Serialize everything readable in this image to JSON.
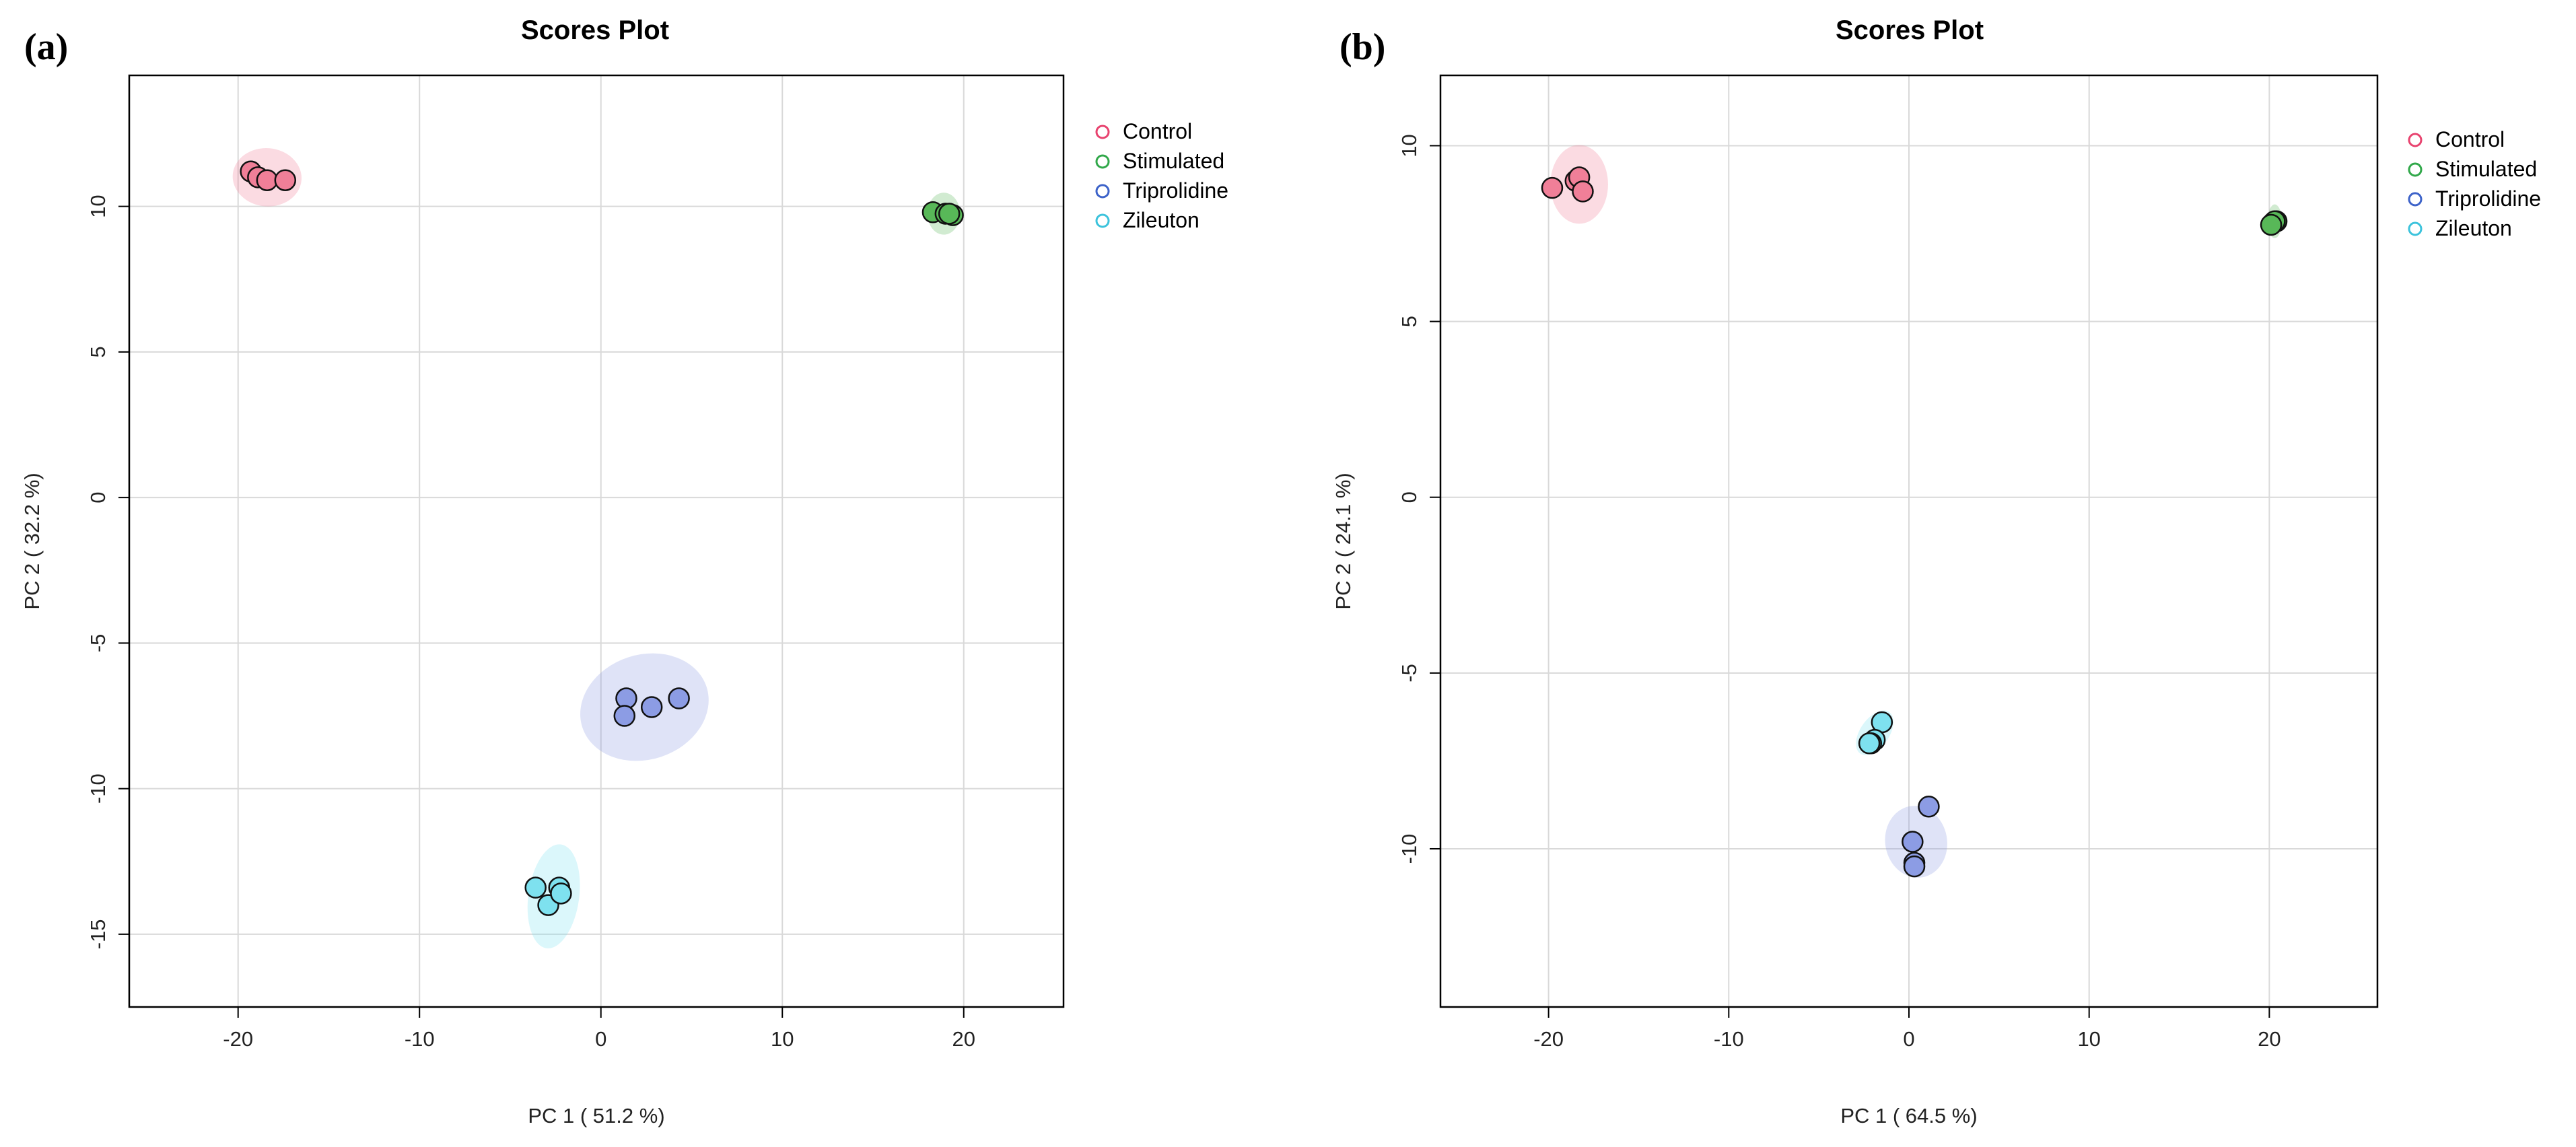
{
  "chart_data": [
    {
      "type": "scatter",
      "panel_label": "(a)",
      "title": "Scores Plot",
      "xlabel": "PC 1 ( 51.2 %)",
      "ylabel": "PC 2 ( 32.2 %)",
      "xlim": [
        -26,
        25.5
      ],
      "ylim": [
        -17.5,
        14.5
      ],
      "xticks": [
        -20,
        -10,
        0,
        10,
        20
      ],
      "yticks": [
        -15,
        -10,
        -5,
        0,
        5,
        10
      ],
      "grid": true,
      "legend_position": "top-right",
      "series": [
        {
          "name": "Control",
          "color": "#e8436f",
          "fill": "#f07f98",
          "ellipse": {
            "cx": -18.4,
            "cy": 11.0,
            "rx": 1.9,
            "ry": 0.25,
            "angle": -5
          },
          "points": [
            [
              -19.3,
              11.2
            ],
            [
              -18.9,
              11.0
            ],
            [
              -18.4,
              10.9
            ],
            [
              -17.4,
              10.9
            ]
          ]
        },
        {
          "name": "Stimulated",
          "color": "#31a84a",
          "fill": "#58b858",
          "ellipse": {
            "cx": 18.9,
            "cy": 9.75,
            "rx": 0.9,
            "ry": 0.18,
            "angle": 0
          },
          "points": [
            [
              18.3,
              9.8
            ],
            [
              19.0,
              9.75
            ],
            [
              19.4,
              9.7
            ],
            [
              19.2,
              9.75
            ]
          ]
        },
        {
          "name": "Triprolidine",
          "color": "#3d63c9",
          "fill": "#8c9ce4",
          "ellipse": {
            "cx": 2.4,
            "cy": -7.2,
            "rx": 3.6,
            "ry": 0.45,
            "angle": 18
          },
          "points": [
            [
              1.4,
              -6.9
            ],
            [
              1.3,
              -7.5
            ],
            [
              2.8,
              -7.2
            ],
            [
              4.3,
              -6.9
            ]
          ]
        },
        {
          "name": "Zileuton",
          "color": "#3cc3dc",
          "fill": "#7ee1ef",
          "ellipse": {
            "cx": -2.6,
            "cy": -13.7,
            "rx": 1.4,
            "ry": 0.45,
            "angle": -8
          },
          "points": [
            [
              -3.6,
              -13.4
            ],
            [
              -2.9,
              -14.0
            ],
            [
              -2.3,
              -13.4
            ],
            [
              -2.2,
              -13.6
            ]
          ]
        }
      ]
    },
    {
      "type": "scatter",
      "panel_label": "(b)",
      "title": "Scores Plot",
      "xlabel": "PC 1 ( 64.5 %)",
      "ylabel": "PC 2 ( 24.1 %)",
      "xlim": [
        -26,
        26
      ],
      "ylim": [
        -14.5,
        12
      ],
      "xticks": [
        -20,
        -10,
        0,
        10,
        20
      ],
      "yticks": [
        -10,
        -5,
        0,
        5,
        10
      ],
      "grid": true,
      "legend_position": "top-right",
      "series": [
        {
          "name": "Control",
          "color": "#e8436f",
          "fill": "#f07f98",
          "ellipse": {
            "cx": -18.3,
            "cy": 8.9,
            "rx": 1.6,
            "ry": 0.28,
            "angle": 0
          },
          "points": [
            [
              -19.8,
              8.8
            ],
            [
              -18.5,
              9.0
            ],
            [
              -18.3,
              9.1
            ],
            [
              -18.1,
              8.7
            ]
          ]
        },
        {
          "name": "Stimulated",
          "color": "#31a84a",
          "fill": "#58b858",
          "ellipse": {
            "cx": 20.3,
            "cy": 7.85,
            "rx": 0.4,
            "ry": 0.12,
            "angle": 0
          },
          "points": [
            [
              20.2,
              7.8
            ],
            [
              20.4,
              7.85
            ],
            [
              20.3,
              7.85
            ],
            [
              20.1,
              7.75
            ]
          ]
        },
        {
          "name": "Triprolidine",
          "color": "#3d63c9",
          "fill": "#8c9ce4",
          "ellipse": {
            "cx": 0.4,
            "cy": -9.8,
            "rx": 2.0,
            "ry": 0.22,
            "angle": -80
          },
          "points": [
            [
              1.1,
              -8.8
            ],
            [
              0.2,
              -9.8
            ],
            [
              0.3,
              -10.4
            ],
            [
              0.3,
              -10.5
            ]
          ]
        },
        {
          "name": "Zileuton",
          "color": "#3cc3dc",
          "fill": "#7ee1ef",
          "ellipse": {
            "cx": -1.9,
            "cy": -6.7,
            "rx": 0.8,
            "ry": 0.18,
            "angle": -35
          },
          "points": [
            [
              -1.5,
              -6.4
            ],
            [
              -1.9,
              -6.9
            ],
            [
              -2.1,
              -7.0
            ],
            [
              -2.2,
              -7.0
            ]
          ]
        }
      ]
    }
  ]
}
